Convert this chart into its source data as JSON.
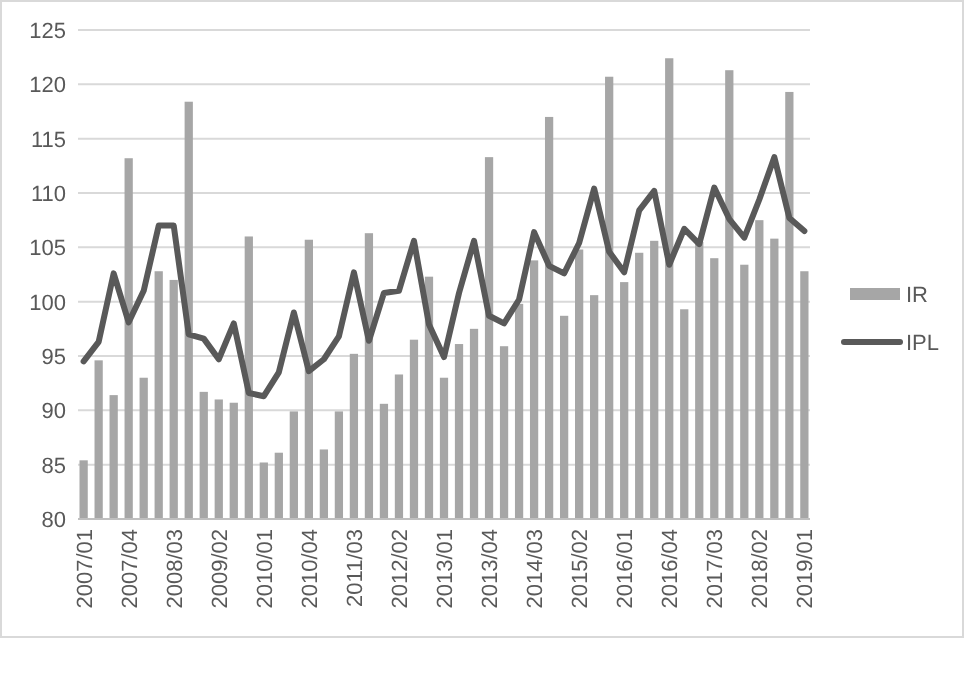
{
  "chart_data": {
    "type": "bar",
    "categories": [
      "2007/01",
      null,
      null,
      "2007/04",
      null,
      null,
      "2008/03",
      null,
      null,
      "2009/02",
      null,
      null,
      "2010/01",
      null,
      null,
      "2010/04",
      null,
      null,
      "2011/03",
      null,
      null,
      "2012/02",
      null,
      null,
      "2013/01",
      null,
      null,
      "2013/04",
      null,
      null,
      "2014/03",
      null,
      null,
      "2015/02",
      null,
      null,
      "2016/01",
      null,
      null,
      "2016/04",
      null,
      null,
      "2017/03",
      null,
      null,
      "2018/02",
      null,
      null,
      "2019/01"
    ],
    "series": [
      {
        "name": "IR",
        "color": "#a6a6a6",
        "values": [
          85.4,
          94.6,
          91.4,
          113.2,
          93.0,
          102.8,
          102.0,
          118.4,
          91.7,
          91.0,
          90.7,
          106.0,
          85.2,
          86.1,
          89.9,
          105.7,
          86.4,
          89.9,
          95.2,
          106.3,
          90.6,
          93.3,
          96.5,
          102.3,
          93.0,
          96.1,
          97.5,
          113.3,
          95.9,
          99.8,
          103.8,
          117.0,
          98.7,
          104.8,
          100.6,
          120.7,
          101.8,
          104.5,
          105.6,
          122.4,
          99.3,
          105.5,
          104.0,
          121.3,
          103.4,
          107.5,
          105.8,
          119.3,
          102.8
        ]
      },
      {
        "name": "IPL",
        "type": "line",
        "color": "#595959",
        "values": [
          94.5,
          96.3,
          102.6,
          98.1,
          101.0,
          107.0,
          107.0,
          97.0,
          96.6,
          94.7,
          98.0,
          91.6,
          91.3,
          93.5,
          99.0,
          93.6,
          94.7,
          96.8,
          102.7,
          96.4,
          100.8,
          101.0,
          105.6,
          97.9,
          94.9,
          100.8,
          105.6,
          98.7,
          98.0,
          100.2,
          106.4,
          103.3,
          102.6,
          105.4,
          110.4,
          104.6,
          102.7,
          108.4,
          110.2,
          103.4,
          106.7,
          105.3,
          110.5,
          107.6,
          105.9,
          109.4,
          113.3,
          107.7,
          106.5
        ]
      }
    ],
    "ylim": [
      80,
      125
    ],
    "yticks": [
      80,
      85,
      90,
      95,
      100,
      105,
      110,
      115,
      120,
      125
    ],
    "grid": "y",
    "legend": "right",
    "marker": "none",
    "line_style": "solid"
  }
}
